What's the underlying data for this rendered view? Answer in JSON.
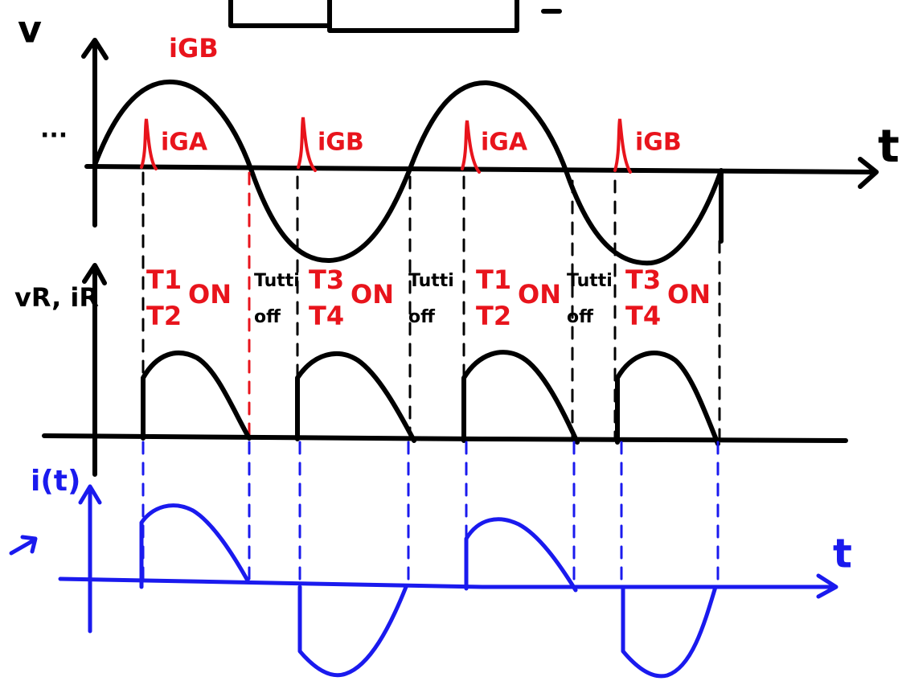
{
  "top_graph": {
    "y_label": "v",
    "top_label": "iGB",
    "ellipsis": "...",
    "x_label": "t",
    "pulses": [
      "iGA",
      "iGB",
      "iGA",
      "iGB"
    ]
  },
  "middle_graph": {
    "y_label": "vR, iR",
    "intervals": [
      {
        "text": [
          "T1",
          "T2"
        ],
        "state": "ON"
      },
      {
        "text": [
          "Tutti",
          "off"
        ]
      },
      {
        "text": [
          "T3",
          "T4"
        ],
        "state": "ON"
      },
      {
        "text": [
          "Tutti",
          "off"
        ]
      },
      {
        "text": [
          "T1",
          "T2"
        ],
        "state": "ON"
      },
      {
        "text": [
          "Tutti",
          "off"
        ]
      },
      {
        "text": [
          "T3",
          "T4"
        ],
        "state": "ON"
      }
    ]
  },
  "bottom_graph": {
    "y_label": "i(t)",
    "x_label": "t"
  }
}
